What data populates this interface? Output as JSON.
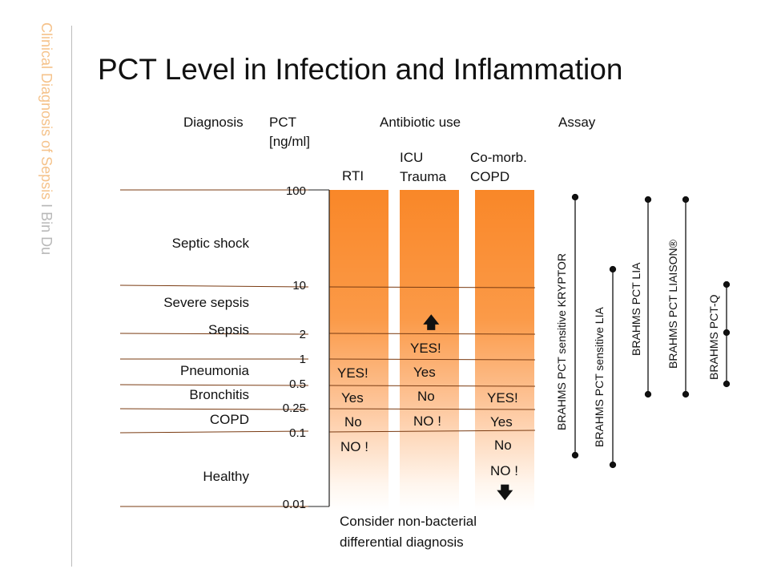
{
  "side": {
    "topic": "Clinical Diagnosis of Sepsis",
    "separator": "I",
    "author": "Bin Du"
  },
  "title": "PCT Level in Infection and Inflammation",
  "headers": {
    "diagnosis": "Diagnosis",
    "pct_line1": "PCT",
    "pct_line2": "[ng/ml]",
    "antibiotic": "Antibiotic use",
    "assay": "Assay"
  },
  "columns": {
    "rti": {
      "label": "RTI"
    },
    "icu": {
      "label_line1": "ICU",
      "label_line2": "Trauma"
    },
    "comorb": {
      "label_line1": "Co-morb.",
      "label_line2": "COPD"
    }
  },
  "diagnoses": [
    "Septic shock",
    "Severe sepsis",
    "Sepsis",
    "Pneumonia",
    "Bronchitis",
    "COPD",
    "Healthy"
  ],
  "pct_levels": [
    "100",
    "10",
    "2",
    "1",
    "0.5",
    "0.25",
    "0.1",
    "0.01"
  ],
  "antibiotic_use": {
    "rti": [
      "YES!",
      "Yes",
      "No",
      "NO !"
    ],
    "icu": [
      "YES!",
      "Yes",
      "No",
      "NO !"
    ],
    "comorb": [
      "YES!",
      "Yes",
      "No",
      "NO !"
    ]
  },
  "assays": [
    "BRAHMS PCT sensitive KRYPTOR",
    "BRAHMS PCT sensitive LIA",
    "BRAHMS PCT LIA",
    "BRAHMS PCT LIAISON®",
    "BRAHMS PCT-Q"
  ],
  "footer": {
    "line1": "Consider non-bacterial",
    "line2": "differential diagnosis"
  },
  "colors": {
    "accent_orange": "#f98728",
    "side_title": "#f5c28a",
    "author": "#b8b8b8"
  }
}
